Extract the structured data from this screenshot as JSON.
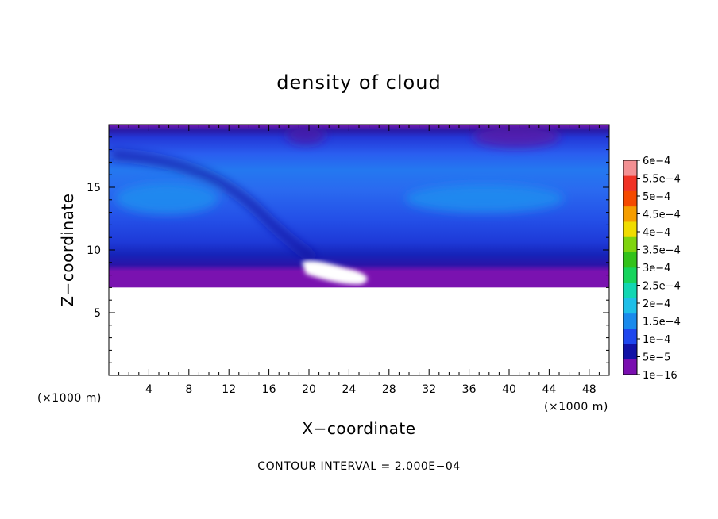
{
  "chart_data": {
    "type": "heatmap",
    "title": "density of cloud",
    "xlabel": "X−coordinate",
    "ylabel": "Z−coordinate",
    "x_unit": "(×1000 m)",
    "y_unit": "(×1000 m)",
    "xlim": [
      0,
      50
    ],
    "ylim": [
      0,
      20
    ],
    "x_ticks": [
      4,
      8,
      12,
      16,
      20,
      24,
      28,
      32,
      36,
      40,
      44,
      48
    ],
    "x_tick_labels": [
      "4",
      "8",
      "12",
      "16",
      "20",
      "24",
      "28",
      "32",
      "36",
      "40",
      "44",
      "48"
    ],
    "y_ticks": [
      5,
      10,
      15
    ],
    "y_tick_labels": [
      "5",
      "10",
      "15"
    ],
    "colorbar": {
      "levels": [
        "1e−16",
        "5e−5",
        "1e−4",
        "1.5e−4",
        "2e−4",
        "2.5e−4",
        "3e−4",
        "3.5e−4",
        "4e−4",
        "4.5e−4",
        "5e−4",
        "5.5e−4",
        "6e−4"
      ],
      "colors": [
        "#7a0fb0",
        "#1212a6",
        "#1f47ee",
        "#1a8aec",
        "#1fbfe8",
        "#12d6b2",
        "#16d45c",
        "#33c21a",
        "#7fd40e",
        "#f0dc00",
        "#f59d00",
        "#f54a00",
        "#f03225",
        "#f39093"
      ]
    },
    "cloud_base_km": 7,
    "cloud_top_km": 20,
    "note": "CONTOUR INTERVAL = 2.000E−04"
  }
}
